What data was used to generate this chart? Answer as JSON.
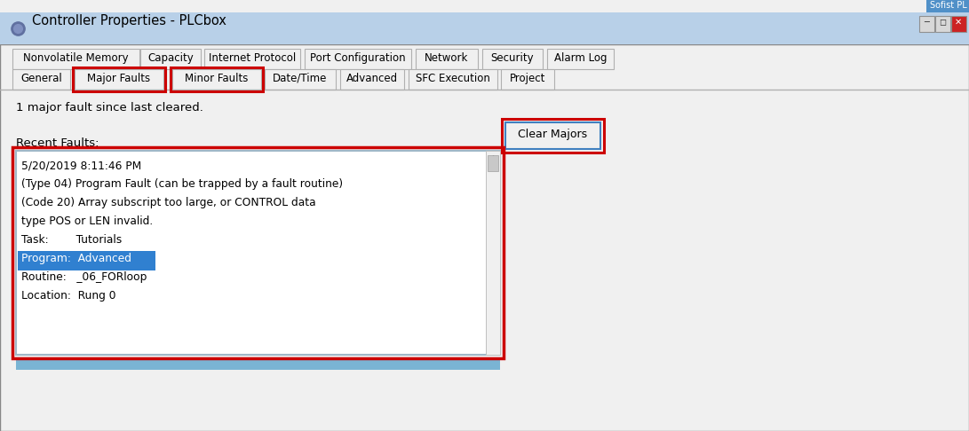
{
  "title": "Controller Properties - PLCbox",
  "bg_color": "#f0f0f0",
  "titlebar_bg_top": "#b8d0e8",
  "titlebar_bg_bot": "#d8e8f4",
  "titlebar_text_color": "#000000",
  "tab_row1": [
    "Nonvolatile Memory",
    "Capacity",
    "Internet Protocol",
    "Port Configuration",
    "Network",
    "Security",
    "Alarm Log"
  ],
  "tab_row2": [
    "General",
    "Major Faults",
    "Minor Faults",
    "Date/Time",
    "Advanced",
    "SFC Execution",
    "Project"
  ],
  "body_text_line1": "1 major fault since last cleared.",
  "body_text_line2": "Recent Faults:",
  "clear_majors_button": "Clear Majors",
  "fault_box_text": [
    "5/20/2019 8:11:46 PM",
    "(Type 04) Program Fault (can be trapped by a fault routine)",
    "(Code 20) Array subscript too large, or CONTROL data",
    "type POS or LEN invalid.",
    "Task:        Tutorials",
    "Program:  Advanced",
    "Routine:   _06_FORloop",
    "Location:  Rung 0"
  ],
  "highlight_line_index": 5,
  "highlight_color": "#3080d0",
  "highlight_text_color": "#ffffff",
  "red_box_color": "#cc0000",
  "fault_box_bg": "#ffffff",
  "bottom_strip_color": "#7ab4d4",
  "top_corner_text": "Sofist PL",
  "top_corner_bg": "#5090c8",
  "tab_bg": "#f0f0f0",
  "tab_border": "#b0b0b0",
  "separator_color": "#c0c0c0",
  "clear_btn_border_blue": "#4080c0",
  "clear_btn_bg": "#f0f0f0"
}
